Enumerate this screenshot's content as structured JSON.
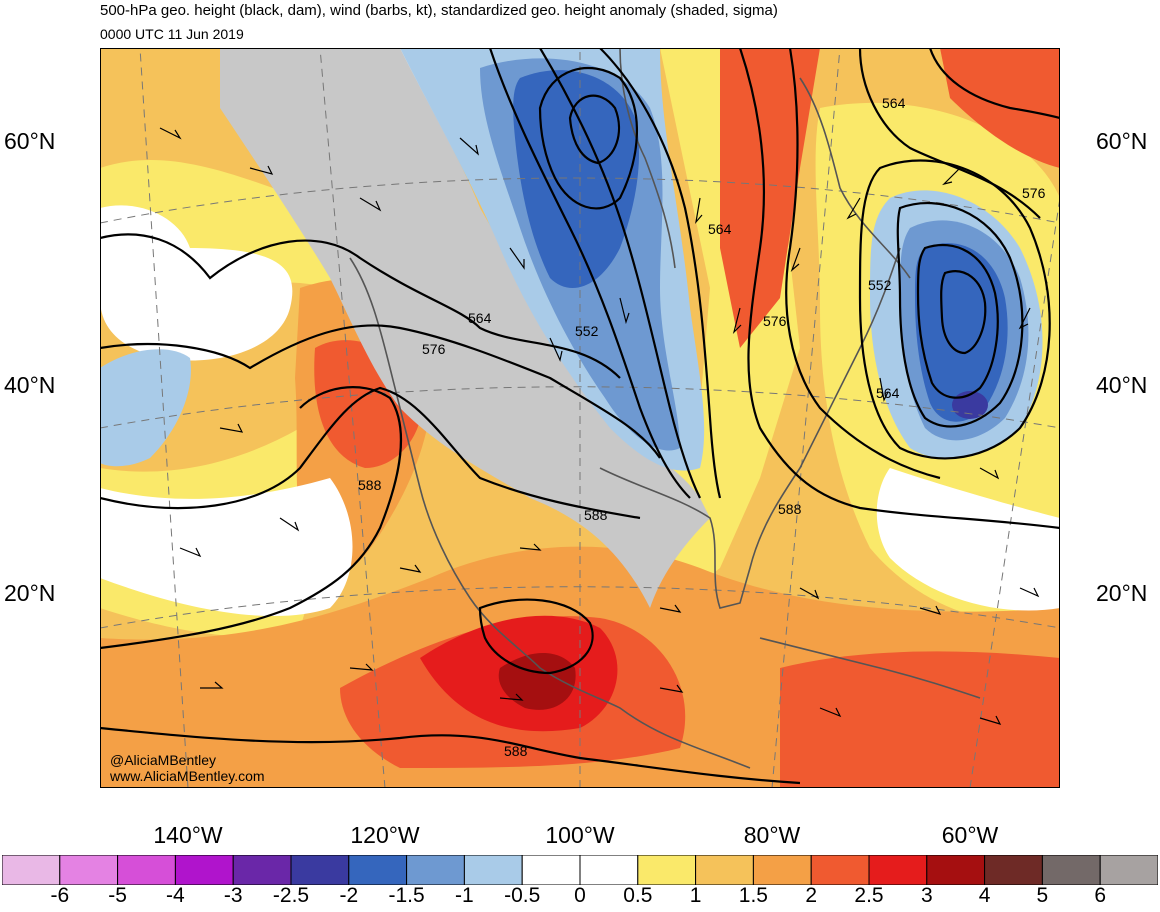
{
  "title": "500-hPa geo. height (black, dam), wind (barbs, kt), standardized geo. height anomaly (shaded, sigma)",
  "subtitle": "0000 UTC 11 Jun 2019",
  "credits": {
    "handle": "@AliciaMBentley",
    "site": "www.AliciaMBentley.com"
  },
  "lat_labels": [
    "60°N",
    "40°N",
    "20°N"
  ],
  "lon_labels": [
    "140°W",
    "120°W",
    "100°W",
    "80°W",
    "60°W"
  ],
  "contour_labels": [
    "564",
    "564",
    "552",
    "576",
    "576",
    "564",
    "552",
    "564",
    "576",
    "588",
    "588",
    "588",
    "588"
  ],
  "colorbar": {
    "labels": [
      "-6",
      "-5",
      "-4",
      "-3",
      "-2.5",
      "-2",
      "-1.5",
      "-1",
      "-0.5",
      "0",
      "0.5",
      "1",
      "1.5",
      "2",
      "2.5",
      "3",
      "4",
      "5",
      "6"
    ],
    "colors": [
      "#e9b8e6",
      "#e482e3",
      "#d64fd8",
      "#b014cc",
      "#6a27a8",
      "#3a3aa0",
      "#3566bd",
      "#6e99d1",
      "#a9cbe8",
      "#ffffff",
      "#ffffff",
      "#fae96a",
      "#f5c25a",
      "#f4a046",
      "#f05a30",
      "#e51c1c",
      "#a50f10",
      "#6e2a26",
      "#736968",
      "#a7a2a1"
    ]
  },
  "colors": {
    "neg_weak": "#a9cbe8",
    "neg_mid": "#6e99d1",
    "neg_strong": "#3566bd",
    "neg_core": "#3a3aa0",
    "gray": "#c8c8c8",
    "pos_1": "#fae96a",
    "pos_15": "#f5c25a",
    "pos_2": "#f4a046",
    "pos_25": "#f05a30",
    "pos_3": "#e51c1c",
    "pos_4": "#a50f10"
  }
}
